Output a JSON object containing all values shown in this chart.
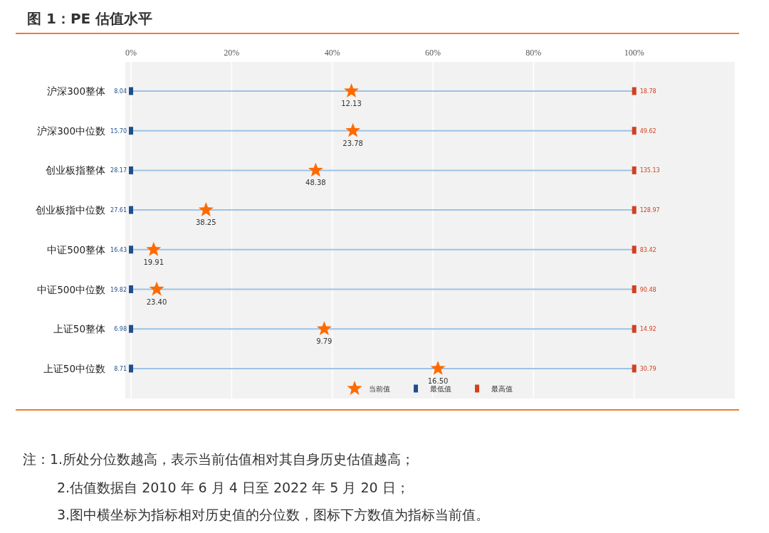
{
  "chart_data": {
    "type": "scatter",
    "title": "图 1：PE 估值水平",
    "orientation": "horizontal",
    "categories": [
      "沪深300整体",
      "沪深300中位数",
      "创业板指整体",
      "创业板指中位数",
      "中证500整体",
      "中证500中位数",
      "上证50整体",
      "上证50中位数"
    ],
    "xlim": [
      0,
      120
    ],
    "xticks": [
      {
        "value": 0,
        "label": "0%"
      },
      {
        "value": 20,
        "label": "20%"
      },
      {
        "value": 40,
        "label": "40%"
      },
      {
        "value": 60,
        "label": "60%"
      },
      {
        "value": 80,
        "label": "80%"
      },
      {
        "value": 100,
        "label": "100%"
      }
    ],
    "grid": true,
    "legend": "bottom",
    "series": [
      {
        "name": "当前值",
        "color": "#ff6a00",
        "marker": "star",
        "values": [
          43.8,
          44.1,
          36.7,
          14.9,
          4.5,
          5.1,
          38.4,
          61.0
        ]
      },
      {
        "name": "最低值",
        "color": "#1f4e8c",
        "marker": "square",
        "values": [
          0,
          0,
          0,
          0,
          0,
          0,
          0,
          0
        ]
      },
      {
        "name": "最高值",
        "color": "#d2401f",
        "marker": "square",
        "values": [
          100,
          100,
          100,
          100,
          100,
          100,
          100,
          100
        ]
      }
    ],
    "annotations": [
      {
        "text": "12.13",
        "x": 43.8,
        "y": "沪深300整体"
      },
      {
        "text": "23.78",
        "x": 44.1,
        "y": "沪深300中位数"
      },
      {
        "text": "48.38",
        "x": 36.7,
        "y": "创业板指整体"
      },
      {
        "text": "38.25",
        "x": 14.9,
        "y": "创业板指中位数"
      },
      {
        "text": "19.91",
        "x": 4.5,
        "y": "中证500整体"
      },
      {
        "text": "23.40",
        "x": 5.1,
        "y": "中证500中位数"
      },
      {
        "text": "9.79",
        "x": 38.4,
        "y": "上证50整体"
      },
      {
        "text": "16.50",
        "x": 61.0,
        "y": "上证50中位数"
      },
      {
        "text": "8.04",
        "x": 0,
        "y": "沪深300整体"
      },
      {
        "text": "15.70",
        "x": 0,
        "y": "沪深300中位数"
      },
      {
        "text": "28.17",
        "x": 0,
        "y": "创业板指整体"
      },
      {
        "text": "27.61",
        "x": 0,
        "y": "创业板指中位数"
      },
      {
        "text": "16.43",
        "x": 0,
        "y": "中证500整体"
      },
      {
        "text": "19.82",
        "x": 0,
        "y": "中证500中位数"
      },
      {
        "text": "6.98",
        "x": 0,
        "y": "上证50整体"
      },
      {
        "text": "8.71",
        "x": 0,
        "y": "上证50中位数"
      },
      {
        "text": "18.78",
        "x": 100,
        "y": "沪深300整体"
      },
      {
        "text": "49.62",
        "x": 100,
        "y": "沪深300中位数"
      },
      {
        "text": "135.13",
        "x": 100,
        "y": "创业板指整体"
      },
      {
        "text": "128.97",
        "x": 100,
        "y": "创业板指中位数"
      },
      {
        "text": "83.42",
        "x": 100,
        "y": "中证500整体"
      },
      {
        "text": "90.48",
        "x": 100,
        "y": "中证500中位数"
      },
      {
        "text": "14.92",
        "x": 100,
        "y": "上证50整体"
      },
      {
        "text": "30.79",
        "x": 100,
        "y": "上证50中位数"
      },
      "注：1.所处分位数越高，表示当前估值相对其自身历史估值越高；",
      "2.估值数据自 2010 年 6 月 4 日至 2022 年 5 月 20 日；",
      "3.图中横坐标为指标相对历史值的分位数，图标下方数值为指标当前值。"
    ]
  }
}
